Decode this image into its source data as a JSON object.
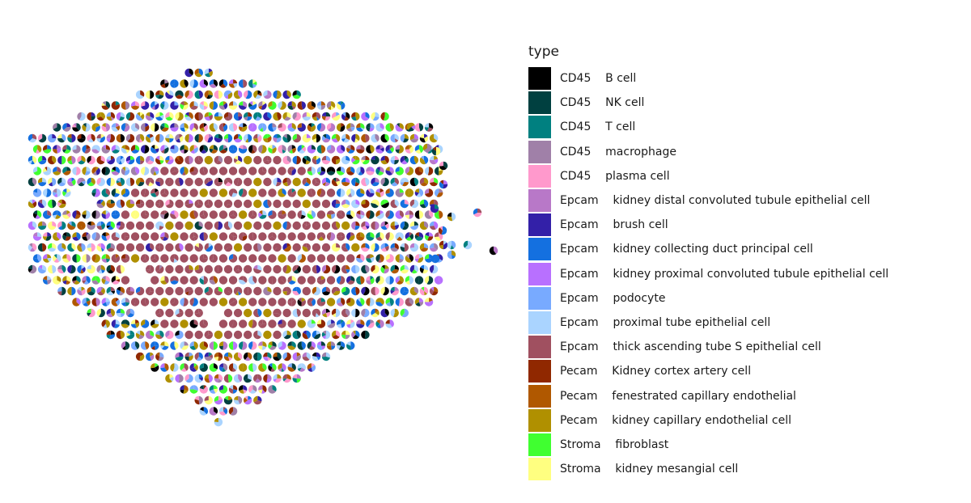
{
  "chart_data": {
    "type": "scatter",
    "subtype": "spatial scatterpie",
    "title": "",
    "xlabel": "",
    "ylabel": "",
    "axes_visible": false,
    "grid": false,
    "legend_position": "right",
    "legend": {
      "title": "type",
      "entries": [
        {
          "label": "CD45    B cell",
          "color": "#000000"
        },
        {
          "label": "CD45    NK cell",
          "color": "#004040"
        },
        {
          "label": "CD45    T cell",
          "color": "#008080"
        },
        {
          "label": "CD45    macrophage",
          "color": "#A080A8"
        },
        {
          "label": "CD45    plasma cell",
          "color": "#FF99CC"
        },
        {
          "label": "Epcam    kidney distal convoluted tubule epithelial cell",
          "color": "#B878C8"
        },
        {
          "label": "Epcam    brush cell",
          "color": "#3320A8"
        },
        {
          "label": "Epcam    kidney collecting duct principal cell",
          "color": "#1470E0"
        },
        {
          "label": "Epcam    kidney proximal convoluted tubule epithelial cell",
          "color": "#B870FF"
        },
        {
          "label": "Epcam    podocyte",
          "color": "#78AAFF"
        },
        {
          "label": "Epcam    proximal tube epithelial cell",
          "color": "#AAD4FF"
        },
        {
          "label": "Epcam    thick ascending tube S epithelial cell",
          "color": "#A05060"
        },
        {
          "label": "Pecam    Kidney cortex artery cell",
          "color": "#902800"
        },
        {
          "label": "Pecam    fenestrated capillary endothelial",
          "color": "#B05800"
        },
        {
          "label": "Pecam    kidney capillary endothelial cell",
          "color": "#B09000"
        },
        {
          "label": "Stroma    fibroblast",
          "color": "#40FF30"
        },
        {
          "label": "Stroma    kidney mesangial cell",
          "color": "#FFFF80"
        }
      ]
    },
    "spot_grid": {
      "pattern": "hexagonal",
      "columns": 40,
      "rows": 30,
      "approx_spot_count": 1080
    }
  }
}
